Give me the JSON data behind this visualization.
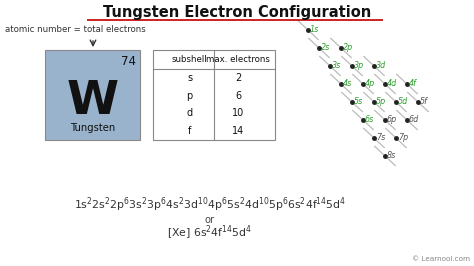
{
  "title": "Tungsten Electron Configuration",
  "bg_color": "#ffffff",
  "element_symbol": "W",
  "element_name": "Tungsten",
  "atomic_number": "74",
  "element_box_color": "#9ab3cc",
  "table_subshells": [
    "s",
    "p",
    "d",
    "f"
  ],
  "table_max_electrons": [
    "2",
    "6",
    "10",
    "14"
  ],
  "green_color": "#2e9e2e",
  "dark_color": "#555555",
  "orbitals": [
    [
      1,
      0,
      "1s",
      true
    ],
    [
      2,
      0,
      "2s",
      true
    ],
    [
      2,
      1,
      "2p",
      true
    ],
    [
      3,
      0,
      "3s",
      true
    ],
    [
      3,
      1,
      "3p",
      true
    ],
    [
      3,
      2,
      "3d",
      true
    ],
    [
      4,
      0,
      "4s",
      true
    ],
    [
      4,
      1,
      "4p",
      true
    ],
    [
      4,
      2,
      "4d",
      true
    ],
    [
      4,
      3,
      "4f",
      true
    ],
    [
      5,
      0,
      "5s",
      true
    ],
    [
      5,
      1,
      "5p",
      true
    ],
    [
      5,
      2,
      "5d",
      true
    ],
    [
      5,
      3,
      "5f",
      false
    ],
    [
      6,
      0,
      "6s",
      true
    ],
    [
      6,
      1,
      "6p",
      false
    ],
    [
      6,
      2,
      "6d",
      false
    ],
    [
      7,
      0,
      "7s",
      false
    ],
    [
      7,
      1,
      "7p",
      false
    ],
    [
      8,
      0,
      "8s",
      false
    ]
  ],
  "learnool_text": "© Learnool.com",
  "underline_color": "#cc2222",
  "title_fontsize": 10.5,
  "arrow_color": "#333333"
}
